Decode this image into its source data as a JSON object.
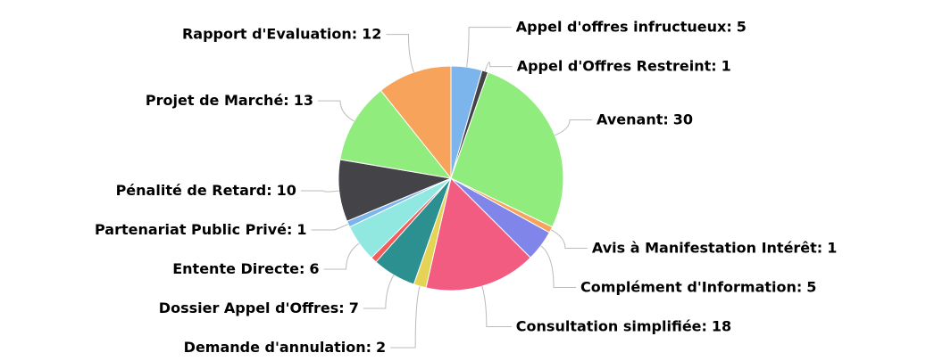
{
  "chart_data": {
    "type": "pie",
    "categories": [
      "Appel d'offres infructueux:",
      "Appel d'Offres Restreint:",
      "Avenant:",
      "Avis à Manifestation Intérêt:",
      "Complément d'Information:",
      "Consultation simplifiée:",
      "Demande d'annulation:",
      "Dossier Appel d'Offres:",
      null,
      "Entente Directe:",
      "Partenariat Public Privé:",
      "Pénalité de Retard:",
      "Projet de Marché:",
      "Rapport d'Evaluation:"
    ],
    "values": [
      5,
      1,
      30,
      1,
      5,
      18,
      2,
      7,
      1,
      6,
      1,
      10,
      13,
      12
    ],
    "colors": [
      "#7cb5ec",
      "#434348",
      "#90ed7d",
      "#f7a35c",
      "#8085e9",
      "#f15c80",
      "#e4d354",
      "#2b908f",
      "#f45b5b",
      "#91e8e1",
      "#7cb5ec",
      "#434348",
      "#90ed7d",
      "#f7a35c"
    ]
  }
}
